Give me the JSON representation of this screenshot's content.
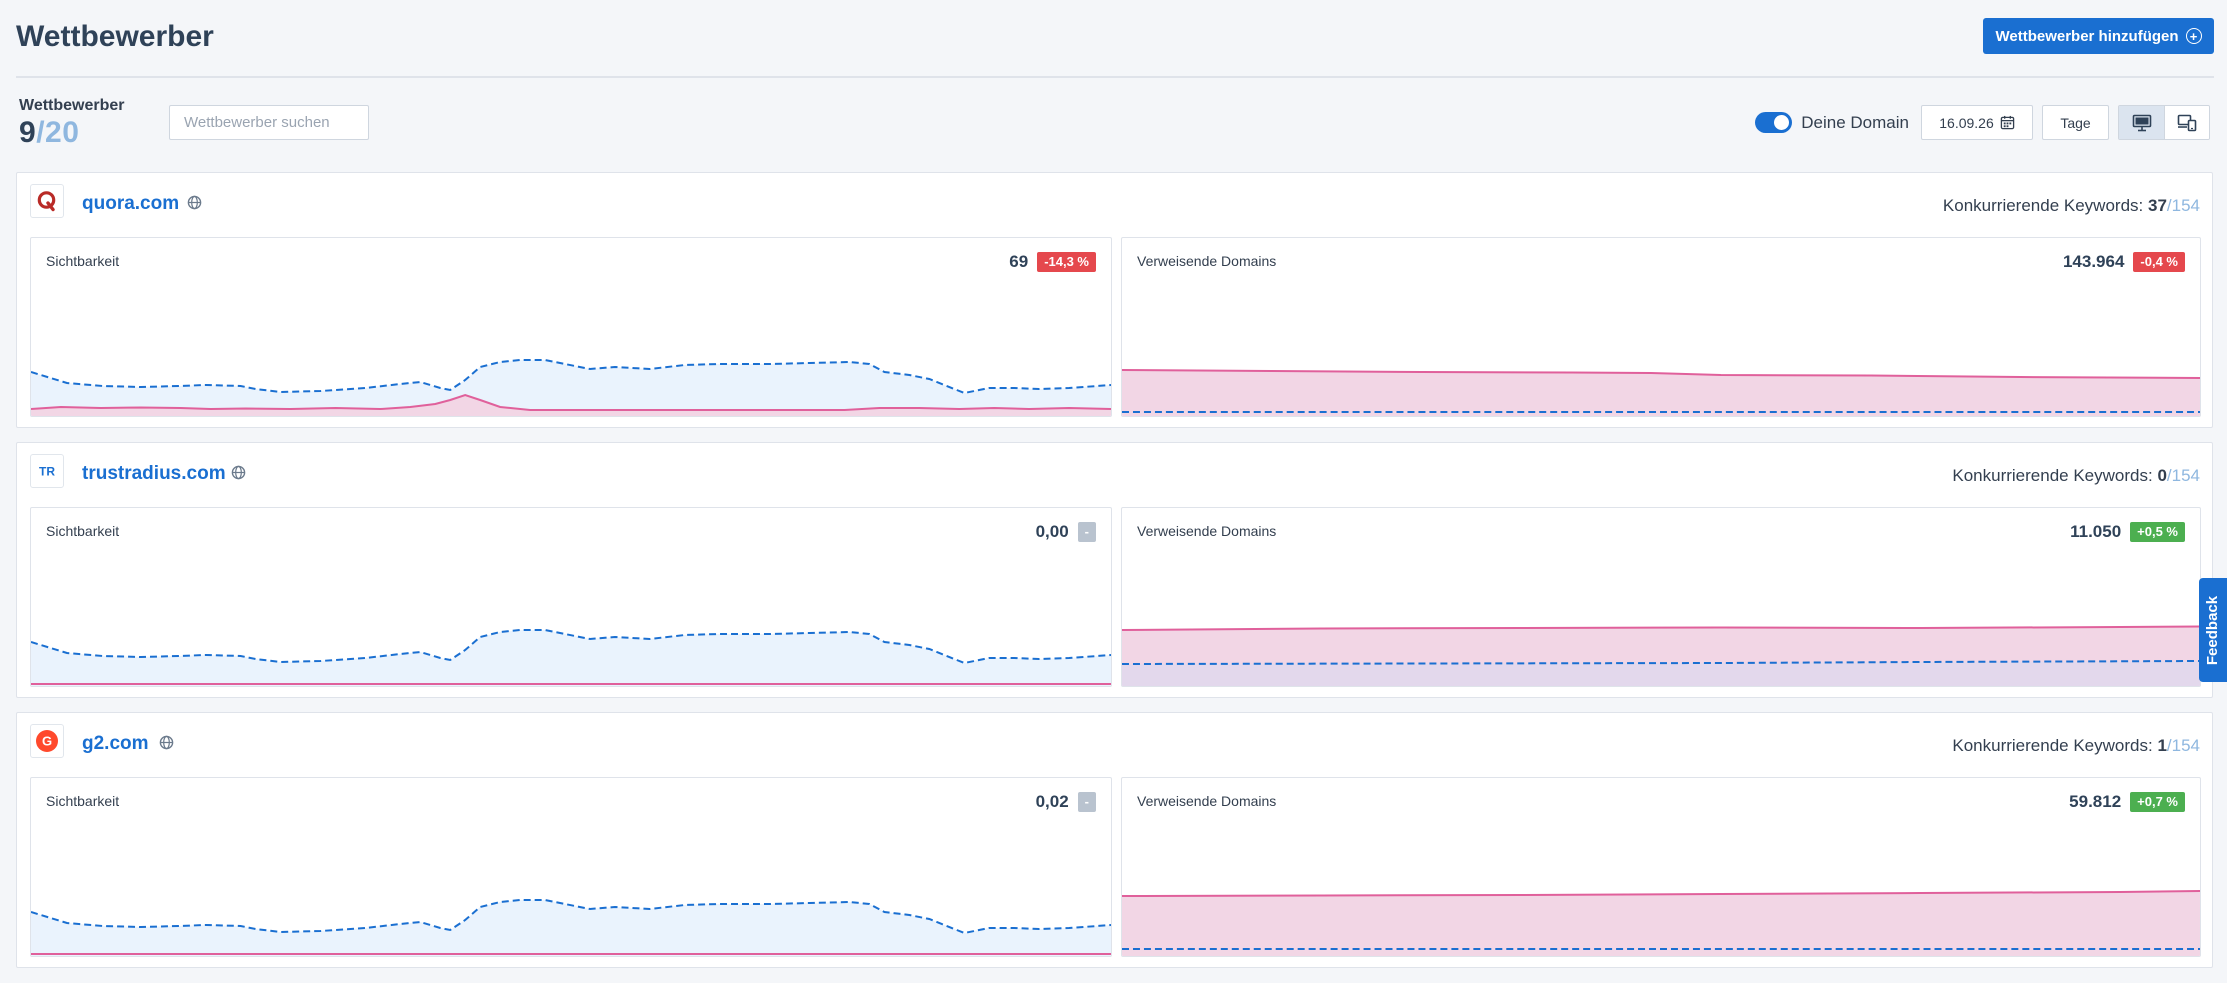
{
  "header": {
    "title": "Wettbewerber",
    "add_button": "Wettbewerber hinzufügen"
  },
  "competitors_count": {
    "label": "Wettbewerber",
    "current": "9",
    "max": "/20"
  },
  "search": {
    "placeholder": "Wettbewerber suchen"
  },
  "toolbar": {
    "toggle_label": "Deine Domain",
    "date": "16.09.26",
    "interval": "Tage"
  },
  "colors": {
    "accent": "#1a6fd1",
    "visibility_line": "#1a6fd1",
    "visibility_fill": "#eaf3fd",
    "domain_line": "#e0609b",
    "domain_fill": "#f2d6e5",
    "negative": "#e5484d",
    "positive": "#4caf50"
  },
  "competitors": [
    {
      "domain": "quora.com",
      "logo_icon": "quora-logo-icon",
      "keywords_label": "Konkurrierende Keywords:",
      "keywords_value": "37",
      "keywords_total": "/154",
      "visibility": {
        "title": "Sichtbarkeit",
        "value": "69",
        "change": "-14,3 %",
        "change_type": "neg"
      },
      "referring": {
        "title": "Verweisende Domains",
        "value": "143.964",
        "change": "-0,4 %",
        "change_type": "neg"
      }
    },
    {
      "domain": "trustradius.com",
      "logo_icon": "trustradius-logo-icon",
      "keywords_label": "Konkurrierende Keywords:",
      "keywords_value": "0",
      "keywords_total": "/154",
      "visibility": {
        "title": "Sichtbarkeit",
        "value": "0,00",
        "change": "-",
        "change_type": "neutral"
      },
      "referring": {
        "title": "Verweisende Domains",
        "value": "11.050",
        "change": "+0,5 %",
        "change_type": "pos"
      }
    },
    {
      "domain": "g2.com",
      "logo_icon": "g2-logo-icon",
      "keywords_label": "Konkurrierende Keywords:",
      "keywords_value": "1",
      "keywords_total": "/154",
      "visibility": {
        "title": "Sichtbarkeit",
        "value": "0,02",
        "change": "-",
        "change_type": "neutral"
      },
      "referring": {
        "title": "Verweisende Domains",
        "value": "59.812",
        "change": "+0,7 %",
        "change_type": "pos"
      }
    }
  ],
  "feedback": "Feedback"
}
